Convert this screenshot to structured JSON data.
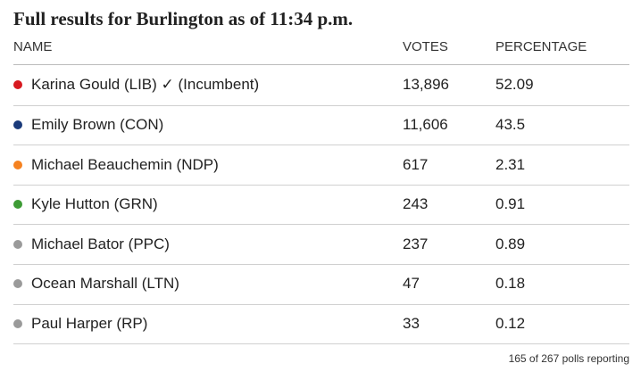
{
  "header": {
    "title": "Full results for Burlington as of 11:34 p.m."
  },
  "table": {
    "columns": [
      "NAME",
      "VOTES",
      "PERCENTAGE"
    ],
    "rows": [
      [
        "Karina Gould (LIB) ✓ (Incumbent)",
        "13,896",
        "52.09"
      ],
      [
        "Emily Brown (CON)",
        "11,606",
        "43.5"
      ],
      [
        "Michael Beauchemin (NDP)",
        "617",
        "2.31"
      ],
      [
        "Kyle Hutton (GRN)",
        "243",
        "0.91"
      ],
      [
        "Michael Bator (PPC)",
        "237",
        "0.89"
      ],
      [
        "Ocean Marshall (LTN)",
        "47",
        "0.18"
      ],
      [
        "Paul Harper (RP)",
        "33",
        "0.12"
      ]
    ]
  },
  "footer": {
    "note": "165 of 267 polls reporting"
  }
}
